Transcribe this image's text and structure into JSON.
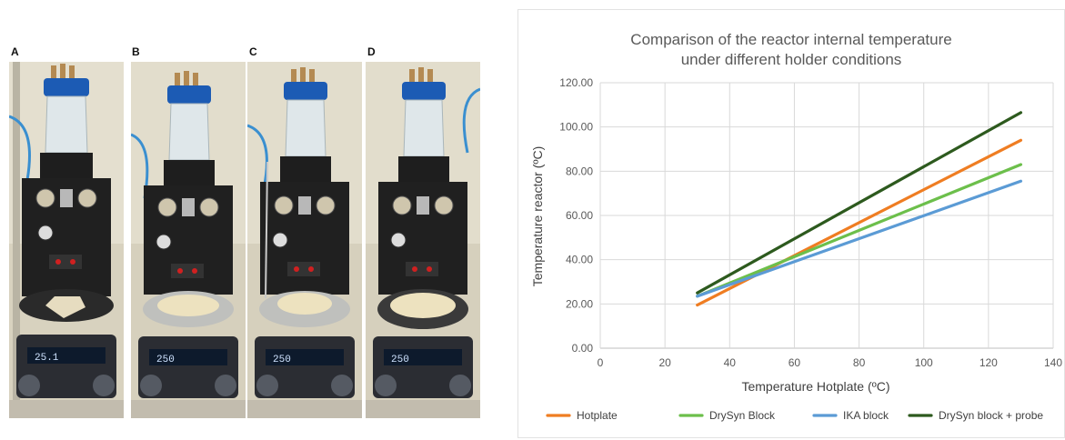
{
  "figure": {
    "panel_labels": [
      "A",
      "B",
      "C",
      "D"
    ],
    "display_readouts": [
      "25.1",
      "250",
      "250",
      "250"
    ]
  },
  "chart_data": {
    "type": "line",
    "title_lines": [
      "Comparison of the reactor internal temperature",
      "under different holder conditions"
    ],
    "xlabel": "Temperature Hotplate (ºC)",
    "ylabel": "Temperature reactor (ºC)",
    "xlim": [
      0,
      140
    ],
    "ylim": [
      0,
      120
    ],
    "x_ticks": [
      "0",
      "20",
      "40",
      "60",
      "80",
      "100",
      "120",
      "140"
    ],
    "y_ticks": [
      "0.00",
      "20.00",
      "40.00",
      "60.00",
      "80.00",
      "100.00",
      "120.00"
    ],
    "grid": true,
    "legend_position": "bottom",
    "series": [
      {
        "name": "Hotplate",
        "color": "#ef7d22",
        "x": [
          30,
          130
        ],
        "y": [
          19.5,
          94
        ]
      },
      {
        "name": "DrySyn Block",
        "color": "#6cbf4b",
        "x": [
          30,
          130
        ],
        "y": [
          23.5,
          83
        ]
      },
      {
        "name": "IKA block",
        "color": "#5b9bd5",
        "x": [
          30,
          130
        ],
        "y": [
          23.5,
          75.5
        ]
      },
      {
        "name": "DrySyn block + probe",
        "color": "#2d5a1e",
        "x": [
          30,
          130
        ],
        "y": [
          25,
          106.5
        ]
      }
    ]
  }
}
